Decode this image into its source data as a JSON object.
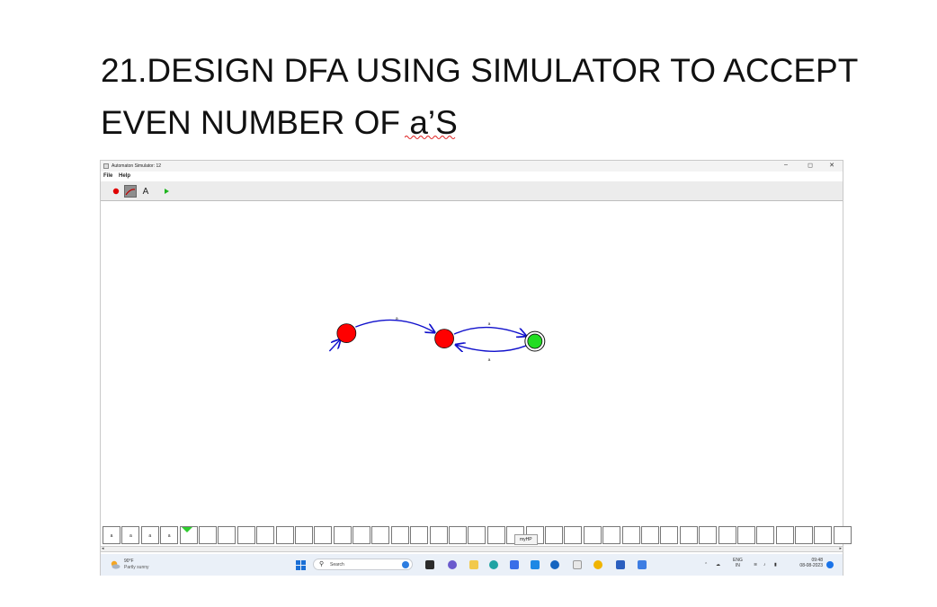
{
  "slide": {
    "title_line1": "21.DESIGN DFA USING SIMULATOR TO ACCEPT",
    "title_line2": "EVEN NUMBER OF a’S"
  },
  "window": {
    "title": "Automaton Simulator: 12",
    "controls": {
      "minimize": "–",
      "maximize": "◻",
      "close": "✕"
    }
  },
  "menu": {
    "file": "File",
    "help": "Help"
  },
  "toolbar": {
    "tools": [
      {
        "name": "state-tool",
        "icon": "red-circle-icon"
      },
      {
        "name": "transition-tool",
        "icon": "arrow-line-icon"
      },
      {
        "name": "label-tool",
        "label": "A"
      },
      {
        "name": "run-tool",
        "icon": "play-icon"
      }
    ]
  },
  "automaton": {
    "states": [
      {
        "id": "q0",
        "type": "start",
        "color": "#ff0000"
      },
      {
        "id": "q1",
        "type": "normal",
        "color": "#ff0000"
      },
      {
        "id": "q2",
        "type": "accepting",
        "color": "#22dd22"
      }
    ],
    "transitions": [
      {
        "from": "q0",
        "to": "q1",
        "label": "a"
      },
      {
        "from": "q1",
        "to": "q2",
        "label": "a"
      },
      {
        "from": "q2",
        "to": "q1",
        "label": "a"
      }
    ],
    "edge_color": "#1010cc"
  },
  "tape": {
    "cells": [
      "a",
      "a",
      "a",
      "a",
      "",
      "",
      "",
      "",
      "",
      "",
      "",
      "",
      "",
      "",
      "",
      "",
      "",
      "",
      "",
      "",
      "",
      "",
      "",
      "",
      "",
      "",
      "",
      "",
      "",
      "",
      "",
      "",
      "",
      "",
      "",
      "",
      "",
      "",
      ""
    ],
    "pointer_color": "#2fcc2f"
  },
  "tooltip": "myHP",
  "taskbar": {
    "weather_temp": "90°F",
    "weather_desc": "Partly sunny",
    "search_placeholder": "Search",
    "lang_top": "ENG",
    "lang_bottom": "IN",
    "time": "09:48",
    "date": "08-08-2023"
  }
}
